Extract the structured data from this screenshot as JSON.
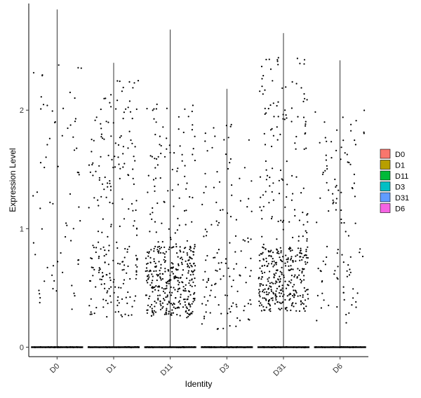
{
  "chart_data": {
    "type": "violin",
    "xlabel": "Identity",
    "ylabel": "Expression Level",
    "categories": [
      "D0",
      "D1",
      "D11",
      "D3",
      "D31",
      "D6"
    ],
    "colors": [
      "#F8766D",
      "#B79F00",
      "#00BA38",
      "#00BFC4",
      "#619CFF",
      "#F564E3"
    ],
    "yticks": [
      0,
      1,
      2
    ],
    "ylim": [
      -0.08,
      2.9
    ],
    "grid": false,
    "legend": {
      "placement": "right",
      "entries": [
        "D0",
        "D1",
        "D11",
        "D3",
        "D31",
        "D6"
      ]
    },
    "series": [
      {
        "name": "D0",
        "max": 2.85,
        "n_points": 70,
        "nonzero_range": [
          0.25,
          2.85
        ]
      },
      {
        "name": "D1",
        "max": 2.4,
        "n_points": 230,
        "nonzero_range": [
          0.2,
          2.4
        ]
      },
      {
        "name": "D11",
        "max": 2.68,
        "n_points": 420,
        "nonzero_range": [
          0.1,
          2.68
        ]
      },
      {
        "name": "D3",
        "max": 2.18,
        "n_points": 130,
        "nonzero_range": [
          0.1,
          2.18
        ]
      },
      {
        "name": "D31",
        "max": 2.65,
        "n_points": 430,
        "nonzero_range": [
          0.2,
          2.65
        ]
      },
      {
        "name": "D6",
        "max": 2.42,
        "n_points": 110,
        "nonzero_range": [
          0.15,
          2.42
        ]
      }
    ]
  }
}
